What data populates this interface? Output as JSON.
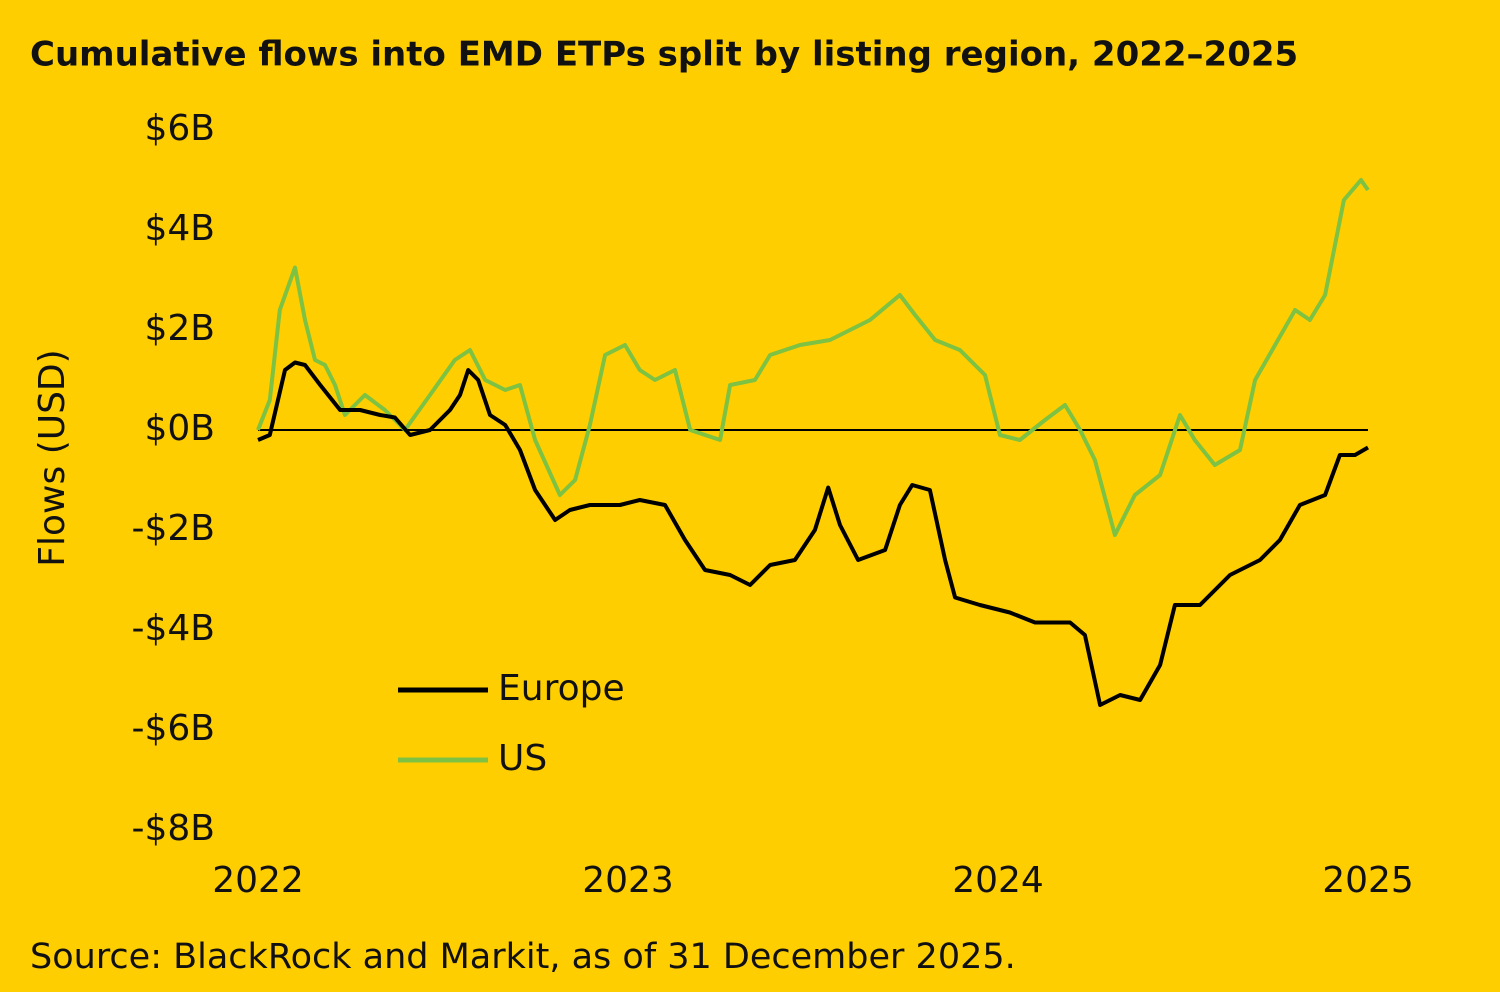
{
  "chart_data": {
    "type": "line",
    "title": "Cumulative flows into EMD ETPs split by listing region, 2022–2025",
    "y_label": "Flows (USD)",
    "source": "Source: BlackRock and Markit, as of 31 December 2025.",
    "xlim": [
      2022,
      2025
    ],
    "xticks": [
      2022,
      2023,
      2024,
      2025
    ],
    "ylim": [
      -8,
      6
    ],
    "yticks": [
      {
        "value": 6,
        "label": "$6B"
      },
      {
        "value": 4,
        "label": "$4B"
      },
      {
        "value": 2,
        "label": "$2B"
      },
      {
        "value": 0,
        "label": "$0B"
      },
      {
        "value": -2,
        "label": "-$2B"
      },
      {
        "value": -4,
        "label": "-$4B"
      },
      {
        "value": -6,
        "label": "-$6B"
      },
      {
        "value": -8,
        "label": "-$8B"
      }
    ],
    "series": [
      {
        "name": "Europe",
        "color": "#000000",
        "x": [
          2022.0,
          2022.032,
          2022.073,
          2022.1,
          2022.127,
          2022.168,
          2022.222,
          2022.276,
          2022.33,
          2022.37,
          2022.411,
          2022.465,
          2022.519,
          2022.546,
          2022.568,
          2022.595,
          2022.627,
          2022.668,
          2022.708,
          2022.749,
          2022.803,
          2022.843,
          2022.897,
          2022.978,
          2023.032,
          2023.1,
          2023.154,
          2023.208,
          2023.276,
          2023.33,
          2023.384,
          2023.451,
          2023.505,
          2023.541,
          2023.573,
          2023.622,
          2023.695,
          2023.735,
          2023.768,
          2023.816,
          2023.857,
          2023.884,
          2023.951,
          2024.032,
          2024.1,
          2024.195,
          2024.235,
          2024.276,
          2024.33,
          2024.384,
          2024.438,
          2024.478,
          2024.546,
          2024.627,
          2024.708,
          2024.762,
          2024.816,
          2024.884,
          2024.924,
          2024.965,
          2025.0
        ],
        "values": [
          -0.2,
          -0.1,
          1.2,
          1.35,
          1.3,
          0.9,
          0.4,
          0.4,
          0.3,
          0.25,
          -0.1,
          0,
          0.4,
          0.7,
          1.2,
          1.0,
          0.3,
          0.1,
          -0.4,
          -1.2,
          -1.8,
          -1.6,
          -1.5,
          -1.5,
          -1.4,
          -1.5,
          -2.2,
          -2.8,
          -2.9,
          -3.1,
          -2.7,
          -2.6,
          -2.0,
          -1.15,
          -1.9,
          -2.6,
          -2.4,
          -1.5,
          -1.1,
          -1.2,
          -2.6,
          -3.35,
          -3.5,
          -3.65,
          -3.85,
          -3.85,
          -4.1,
          -5.5,
          -5.3,
          -5.4,
          -4.7,
          -3.5,
          -3.5,
          -2.9,
          -2.6,
          -2.2,
          -1.5,
          -1.3,
          -0.5,
          -0.5,
          -0.35
        ]
      },
      {
        "name": "US",
        "color": "#7dc242",
        "x": [
          2022.0,
          2022.032,
          2022.059,
          2022.1,
          2022.127,
          2022.154,
          2022.181,
          2022.208,
          2022.235,
          2022.289,
          2022.343,
          2022.397,
          2022.465,
          2022.532,
          2022.573,
          2022.614,
          2022.668,
          2022.708,
          2022.749,
          2022.816,
          2022.857,
          2022.897,
          2022.938,
          2022.992,
          2023.032,
          2023.073,
          2023.127,
          2023.168,
          2023.249,
          2023.276,
          2023.343,
          2023.384,
          2023.465,
          2023.546,
          2023.6,
          2023.654,
          2023.735,
          2023.776,
          2023.83,
          2023.897,
          2023.965,
          2024.005,
          2024.059,
          2024.127,
          2024.181,
          2024.222,
          2024.262,
          2024.316,
          2024.37,
          2024.438,
          2024.492,
          2024.532,
          2024.586,
          2024.654,
          2024.695,
          2024.749,
          2024.803,
          2024.843,
          2024.884,
          2024.935,
          2024.981,
          2025.0
        ],
        "values": [
          0,
          0.6,
          2.4,
          3.25,
          2.2,
          1.4,
          1.3,
          0.9,
          0.3,
          0.7,
          0.4,
          0,
          0.7,
          1.4,
          1.6,
          1.0,
          0.8,
          0.9,
          -0.2,
          -1.3,
          -1.0,
          0.1,
          1.5,
          1.7,
          1.2,
          1.0,
          1.2,
          0,
          -0.2,
          0.9,
          1.0,
          1.5,
          1.7,
          1.8,
          2.0,
          2.2,
          2.7,
          2.3,
          1.8,
          1.6,
          1.1,
          -0.1,
          -0.2,
          0.2,
          0.5,
          0,
          -0.6,
          -2.1,
          -1.3,
          -0.9,
          0.3,
          -0.2,
          -0.7,
          -0.4,
          1.0,
          1.7,
          2.4,
          2.2,
          2.7,
          4.6,
          5.0,
          4.8
        ]
      }
    ]
  }
}
